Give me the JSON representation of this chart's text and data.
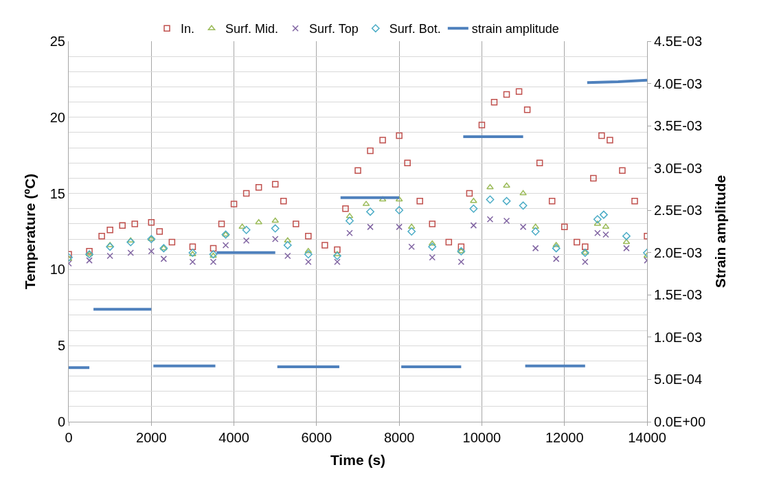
{
  "chart_data": {
    "type": "scatter",
    "xlabel": "Time (s)",
    "ylabel": "Temperature (ºC)",
    "y2label": "Strain amplitude",
    "xlim": [
      0,
      14000
    ],
    "xticks": [
      0,
      2000,
      4000,
      6000,
      8000,
      10000,
      12000,
      14000
    ],
    "ylim": [
      0,
      25
    ],
    "yticks": [
      0,
      {
        "value": 1,
        "label": null
      },
      {
        "value": 2,
        "label": null
      },
      {
        "value": 3,
        "label": null
      },
      {
        "value": 4,
        "label": null
      },
      5,
      {
        "value": 6,
        "label": null
      },
      {
        "value": 7,
        "label": null
      },
      {
        "value": 8,
        "label": null
      },
      {
        "value": 9,
        "label": null
      },
      10,
      {
        "value": 11,
        "label": null
      },
      {
        "value": 12,
        "label": null
      },
      {
        "value": 13,
        "label": null
      },
      {
        "value": 14,
        "label": null
      },
      15,
      {
        "value": 16,
        "label": null
      },
      {
        "value": 17,
        "label": null
      },
      {
        "value": 18,
        "label": null
      },
      {
        "value": 19,
        "label": null
      },
      20,
      {
        "value": 21,
        "label": null
      },
      {
        "value": 22,
        "label": null
      },
      {
        "value": 23,
        "label": null
      },
      {
        "value": 24,
        "label": null
      },
      25
    ],
    "y2lim": [
      0,
      0.0045
    ],
    "y2ticks": [
      {
        "value": 0,
        "label": "0.0E+00"
      },
      {
        "value": 0.0005,
        "label": "5.0E-04"
      },
      {
        "value": 0.001,
        "label": "1.0E-03"
      },
      {
        "value": 0.0015,
        "label": "1.5E-03"
      },
      {
        "value": 0.002,
        "label": "2.0E-03"
      },
      {
        "value": 0.0025,
        "label": "2.5E-03"
      },
      {
        "value": 0.003,
        "label": "3.0E-03"
      },
      {
        "value": 0.0035,
        "label": "3.5E-03"
      },
      {
        "value": 0.004,
        "label": "4.0E-03"
      },
      {
        "value": 0.0045,
        "label": "4.5E-03"
      }
    ],
    "grid": true,
    "legend": "top",
    "series": [
      {
        "name": "In.",
        "color": "#c0504d",
        "marker": "square",
        "x": [
          0,
          500,
          800,
          1000,
          1300,
          1600,
          2000,
          2200,
          2500,
          3000,
          3500,
          3700,
          4000,
          4300,
          4600,
          5000,
          5200,
          5500,
          5800,
          6200,
          6500,
          6700,
          7000,
          7300,
          7600,
          8000,
          8200,
          8500,
          8800,
          9200,
          9500,
          9700,
          10000,
          10300,
          10600,
          10900,
          11100,
          11400,
          11700,
          12000,
          12300,
          12500,
          12700,
          12900,
          13100,
          13400,
          13700,
          14000
        ],
        "values": [
          11.0,
          11.2,
          12.2,
          12.6,
          12.9,
          13.0,
          13.1,
          12.5,
          11.8,
          11.5,
          11.4,
          13.0,
          14.3,
          15.0,
          15.4,
          15.6,
          14.5,
          13.0,
          12.2,
          11.6,
          11.3,
          14.0,
          16.5,
          17.8,
          18.5,
          18.8,
          17.0,
          14.5,
          13.0,
          11.8,
          11.5,
          15.0,
          19.5,
          21.0,
          21.5,
          21.7,
          20.5,
          17.0,
          14.5,
          12.8,
          11.8,
          11.5,
          16.0,
          18.8,
          18.5,
          16.5,
          14.5,
          12.2
        ]
      },
      {
        "name": "Surf. Mid.",
        "color": "#9bbb59",
        "marker": "triangle",
        "x": [
          0,
          500,
          1000,
          1500,
          2000,
          2300,
          3000,
          3500,
          3800,
          4200,
          4600,
          5000,
          5300,
          5800,
          6500,
          6800,
          7200,
          7600,
          8000,
          8300,
          8800,
          9500,
          9800,
          10200,
          10600,
          11000,
          11300,
          11800,
          12500,
          12800,
          13000,
          13500,
          14000
        ],
        "values": [
          10.7,
          11.0,
          11.6,
          11.9,
          12.0,
          11.4,
          11.0,
          10.9,
          12.3,
          12.8,
          13.1,
          13.2,
          11.9,
          11.2,
          11.0,
          13.5,
          14.3,
          14.6,
          14.6,
          12.8,
          11.7,
          11.2,
          14.5,
          15.4,
          15.5,
          15.0,
          12.8,
          11.6,
          11.1,
          13.0,
          12.8,
          11.8,
          10.9
        ]
      },
      {
        "name": "Surf. Top",
        "color": "#8064a2",
        "marker": "cross",
        "x": [
          0,
          500,
          1000,
          1500,
          2000,
          2300,
          3000,
          3500,
          3800,
          4300,
          5000,
          5300,
          5800,
          6500,
          6800,
          7300,
          8000,
          8300,
          8800,
          9500,
          9800,
          10200,
          10600,
          11000,
          11300,
          11800,
          12500,
          12800,
          13000,
          13500,
          14000
        ],
        "values": [
          10.4,
          10.6,
          10.9,
          11.1,
          11.2,
          10.7,
          10.5,
          10.5,
          11.6,
          11.9,
          12.0,
          10.9,
          10.5,
          10.5,
          12.4,
          12.8,
          12.8,
          11.5,
          10.8,
          10.5,
          12.9,
          13.3,
          13.2,
          12.8,
          11.4,
          10.7,
          10.5,
          12.4,
          12.3,
          11.4,
          10.6
        ]
      },
      {
        "name": "Surf. Bot.",
        "color": "#4bacc6",
        "marker": "diamond",
        "x": [
          0,
          500,
          1000,
          1500,
          2000,
          2300,
          3000,
          3500,
          3800,
          4300,
          5000,
          5300,
          5800,
          6500,
          6800,
          7300,
          8000,
          8300,
          8800,
          9500,
          9800,
          10200,
          10600,
          11000,
          11300,
          11800,
          12500,
          12800,
          12950,
          13500,
          14000
        ],
        "values": [
          10.8,
          11.0,
          11.5,
          11.8,
          12.0,
          11.4,
          11.1,
          11.0,
          12.3,
          12.6,
          12.7,
          11.6,
          11.0,
          10.9,
          13.2,
          13.8,
          13.9,
          12.5,
          11.5,
          11.2,
          14.0,
          14.6,
          14.5,
          14.2,
          12.5,
          11.4,
          11.1,
          13.3,
          13.6,
          12.2,
          11.1
        ]
      },
      {
        "name": "strain amplitude",
        "color": "#4f81bd",
        "type": "line",
        "marker": "none",
        "axis": "y2",
        "x": [
          0,
          250,
          500,
          550,
          600,
          1300,
          2000,
          2010,
          2050,
          2800,
          3550,
          3560,
          3580,
          4300,
          5000,
          5010,
          5050,
          5800,
          6550,
          6560,
          6580,
          7300,
          8000,
          8010,
          8050,
          8800,
          9500,
          9510,
          9550,
          10300,
          11000,
          11010,
          11050,
          11800,
          12500,
          12520,
          12550,
          13300,
          14000
        ],
        "values": [
          0.00064,
          0.00064,
          0.00064,
          null,
          0.00133,
          0.00133,
          0.00133,
          null,
          0.00066,
          0.00066,
          0.00066,
          null,
          0.002,
          0.002,
          0.002,
          null,
          0.00065,
          0.00065,
          0.00065,
          null,
          0.00265,
          0.00265,
          0.00265,
          null,
          0.00065,
          0.00065,
          0.00065,
          null,
          0.00337,
          0.00337,
          0.00337,
          null,
          0.00066,
          0.00066,
          0.00066,
          null,
          0.00401,
          0.00402,
          0.00404
        ]
      }
    ]
  }
}
